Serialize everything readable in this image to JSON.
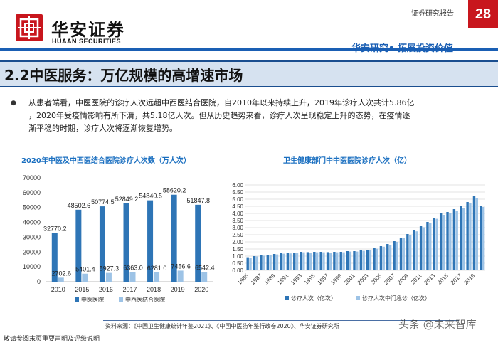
{
  "brand": {
    "name_cn": "华安证券",
    "name_en": "HUAAN SECURITIES",
    "color": "#c8161d"
  },
  "header": {
    "doc_type": "证券研究报告",
    "page_number": "28",
    "slogan": "华安研究• 拓展投资价值"
  },
  "section_title": "2.2中医服务：万亿规模的高增速市场",
  "bullet": {
    "lines": [
      "从患者端看，中医医院的诊疗人次远超中西医结合医院，自2010年以来持续上升，2019年诊疗人次共计5.86亿",
      "，2020年受疫情影响有所下滑，共5.18亿人次。但从历史趋势来看，诊疗人次呈现稳定上升的态势，在疫情逐",
      "渐平稳的时期，诊疗人次将逐渐恢复增势。"
    ]
  },
  "chart_data": [
    {
      "type": "bar",
      "title": "2020年中医及中西医结合医院诊疗人次数（万人次）",
      "categories": [
        "2010",
        "2015",
        "2016",
        "2017",
        "2018",
        "2019",
        "2020"
      ],
      "series": [
        {
          "name": "中医医院",
          "color": "#2e75b6",
          "values": [
            32770.2,
            48502.6,
            50774.5,
            52849.2,
            54840.5,
            58620.2,
            51847.8
          ],
          "labels": [
            "32770.2",
            "48502.6",
            "50774.5",
            "52849.2",
            "54840.5",
            "58620.2",
            "51847.8"
          ]
        },
        {
          "name": "中西医结合医院",
          "color": "#9dc3e6",
          "values": [
            2702.6,
            5401.4,
            5927.3,
            6363.0,
            6281.0,
            7456.6,
            6542.4
          ],
          "labels": [
            "2702.6",
            "5401.4",
            "5927.3",
            "6363.0",
            "6281.0",
            "7456.6",
            "6542.4"
          ]
        }
      ],
      "yticks": [
        "0",
        "10000",
        "20000",
        "30000",
        "40000",
        "50000",
        "60000",
        "70000"
      ],
      "ylim": [
        0,
        70000
      ],
      "legend": "bottom"
    },
    {
      "type": "bar",
      "title": "卫生健康部门中中医医院诊疗人次（亿）",
      "categories": [
        "1985",
        "1986",
        "1987",
        "1988",
        "1989",
        "1990",
        "1991",
        "1992",
        "1993",
        "1994",
        "1995",
        "1996",
        "1997",
        "1998",
        "1999",
        "2000",
        "2001",
        "2002",
        "2003",
        "2004",
        "2005",
        "2006",
        "2007",
        "2008",
        "2009",
        "2010",
        "2011",
        "2012",
        "2013",
        "2014",
        "2015",
        "2016",
        "2017",
        "2018",
        "2019",
        "2020"
      ],
      "xtick_labels": [
        "1985",
        "1987",
        "1989",
        "1991",
        "1993",
        "1995",
        "1997",
        "1999",
        "2001",
        "2003",
        "2005",
        "2007",
        "2009",
        "2011",
        "2013",
        "2015",
        "2017",
        "2019"
      ],
      "series": [
        {
          "name": "诊疗人次（亿次）",
          "color": "#2e75b6",
          "values": [
            0.92,
            1.0,
            1.05,
            1.1,
            1.15,
            1.2,
            1.22,
            1.25,
            1.3,
            1.28,
            1.3,
            1.3,
            1.28,
            1.3,
            1.3,
            1.35,
            1.35,
            1.4,
            1.45,
            1.55,
            1.7,
            1.85,
            2.05,
            2.3,
            2.55,
            2.8,
            3.1,
            3.4,
            3.7,
            4.0,
            4.1,
            4.3,
            4.5,
            4.8,
            5.25,
            4.55
          ]
        },
        {
          "name": "诊疗人次中门急诊（亿次）",
          "color": "#9dc3e6",
          "values": [
            0.9,
            0.98,
            1.03,
            1.08,
            1.12,
            1.17,
            1.19,
            1.22,
            1.27,
            1.25,
            1.27,
            1.27,
            1.25,
            1.27,
            1.27,
            1.32,
            1.32,
            1.37,
            1.42,
            1.52,
            1.66,
            1.8,
            2.0,
            2.25,
            2.5,
            2.74,
            3.03,
            3.33,
            3.62,
            3.9,
            4.0,
            4.2,
            4.4,
            4.7,
            5.1,
            4.45
          ]
        }
      ],
      "yticks": [
        "0.00",
        "0.50",
        "1.00",
        "1.50",
        "2.00",
        "2.50",
        "3.00",
        "3.50",
        "4.00",
        "4.50",
        "5.00",
        "5.50",
        "6.00"
      ],
      "ylim": [
        0,
        6
      ],
      "legend": "bottom"
    }
  ],
  "source": "资料来源：《中国卫生健康统计年鉴2021》、《中国中医药年鉴行政卷2020》、华安证券研究所",
  "disclaimer": "敬请参阅末页重要声明及评级说明",
  "watermark": "头条 @未来智库"
}
